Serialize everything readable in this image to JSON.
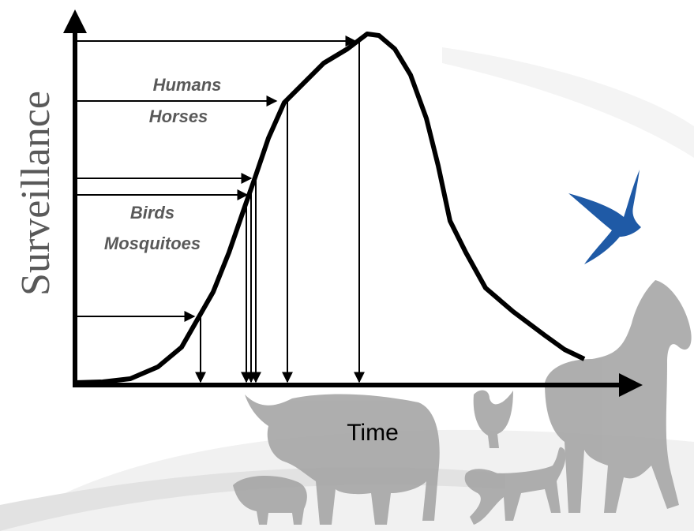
{
  "axes": {
    "y_label": "Surveillance",
    "x_label": "Time"
  },
  "annotations": [
    {
      "lines": [
        "Humans",
        "Horses"
      ]
    },
    {
      "lines": [
        "Birds",
        "Mosquitoes"
      ]
    }
  ]
}
